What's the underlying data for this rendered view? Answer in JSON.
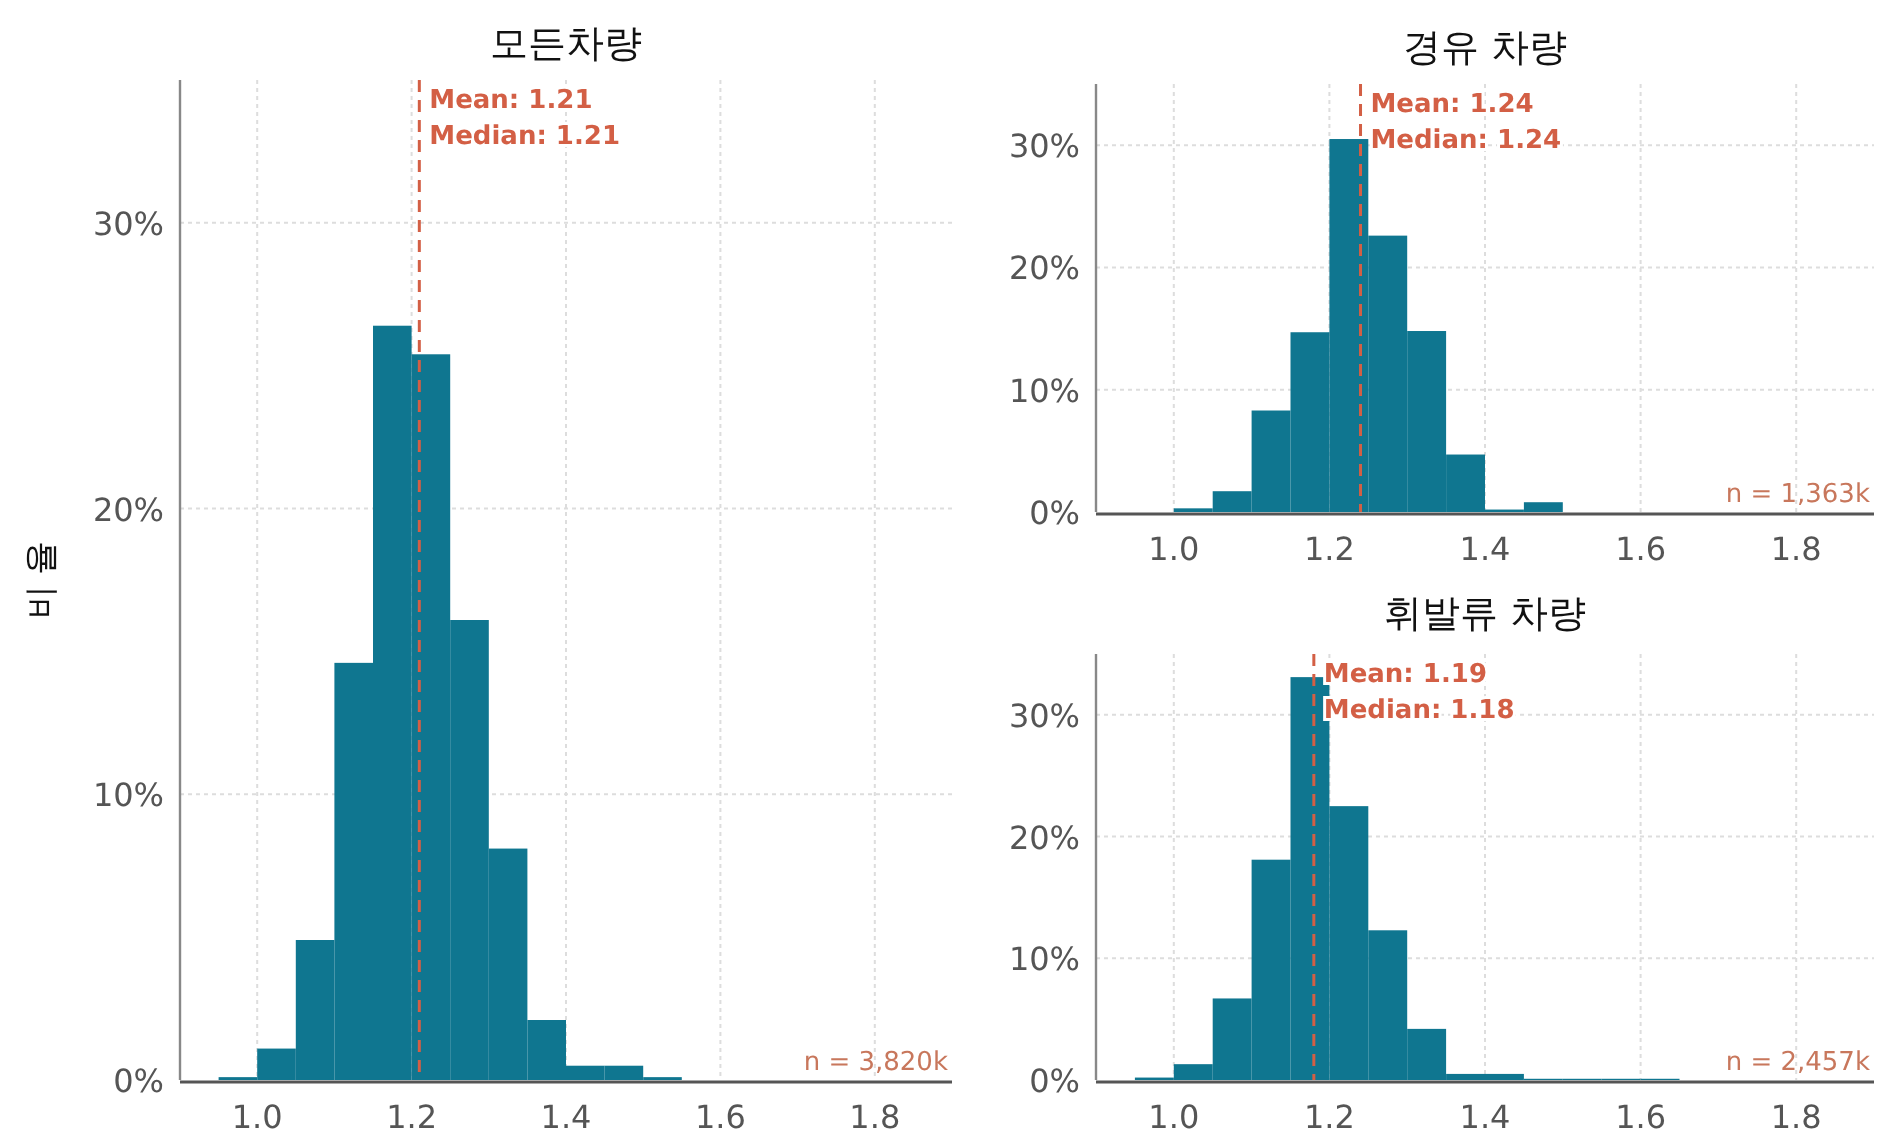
{
  "chart_data": [
    {
      "type": "histogram",
      "title": "모든차량",
      "ylabel": "비 율",
      "color": "#0f7690",
      "bins": [
        0.95,
        1.0,
        1.05,
        1.1,
        1.15,
        1.2,
        1.25,
        1.3,
        1.35,
        1.4,
        1.45,
        1.5,
        1.55,
        1.6,
        1.65,
        1.7,
        1.75,
        1.8,
        1.85,
        1.9
      ],
      "values": [
        0.1,
        1.1,
        4.9,
        14.6,
        26.4,
        25.4,
        16.1,
        8.1,
        2.1,
        0.5,
        0.5,
        0.1,
        0,
        0,
        0,
        0,
        0,
        0,
        0
      ],
      "xlim": [
        0.9,
        1.9
      ],
      "ylim": [
        0,
        35
      ],
      "xticks": [
        {
          "value": 1,
          "label": "1.0"
        },
        {
          "value": 1.2,
          "label": "1.2"
        },
        {
          "value": 1.4,
          "label": "1.4"
        },
        {
          "value": 1.6,
          "label": "1.6"
        },
        {
          "value": 1.8,
          "label": "1.8"
        }
      ],
      "yticks": [
        {
          "value": 0,
          "label": "0%"
        },
        {
          "value": 10,
          "label": "10%"
        },
        {
          "value": 20,
          "label": "20%"
        },
        {
          "value": 30,
          "label": "30%"
        }
      ],
      "grid": true,
      "ref_lines": [
        {
          "axis": "x",
          "value": 1.21,
          "label": "Mean: 1.21\nMedian: 1.21",
          "color": "#d35f45",
          "line_style": "dashed"
        }
      ],
      "annotations": [
        "n = 3,820k"
      ]
    },
    {
      "type": "histogram",
      "title": "경유 차량",
      "color": "#0f7690",
      "bins": [
        1.0,
        1.05,
        1.1,
        1.15,
        1.2,
        1.25,
        1.3,
        1.35,
        1.4,
        1.45,
        1.5,
        1.55,
        1.6,
        1.65,
        1.7,
        1.75,
        1.8,
        1.85,
        1.9
      ],
      "values": [
        0.3,
        1.7,
        8.3,
        14.7,
        30.5,
        22.6,
        14.8,
        4.7,
        0.2,
        0.8,
        0,
        0,
        0,
        0,
        0,
        0,
        0,
        0
      ],
      "xlim": [
        0.9,
        1.9
      ],
      "ylim": [
        0,
        35
      ],
      "xticks": [
        {
          "value": 1,
          "label": "1.0"
        },
        {
          "value": 1.2,
          "label": "1.2"
        },
        {
          "value": 1.4,
          "label": "1.4"
        },
        {
          "value": 1.6,
          "label": "1.6"
        },
        {
          "value": 1.8,
          "label": "1.8"
        }
      ],
      "yticks": [
        {
          "value": 0,
          "label": "0%"
        },
        {
          "value": 10,
          "label": "10%"
        },
        {
          "value": 20,
          "label": "20%"
        },
        {
          "value": 30,
          "label": "30%"
        }
      ],
      "grid": true,
      "ref_lines": [
        {
          "axis": "x",
          "value": 1.24,
          "label": "Mean: 1.24\nMedian: 1.24",
          "color": "#d35f45",
          "line_style": "dashed"
        }
      ],
      "annotations": [
        "n = 1,363k"
      ]
    },
    {
      "type": "histogram",
      "title": "휘발류 차량",
      "color": "#0f7690",
      "bins": [
        0.95,
        1.0,
        1.05,
        1.1,
        1.15,
        1.2,
        1.25,
        1.3,
        1.35,
        1.4,
        1.45,
        1.5,
        1.55,
        1.6,
        1.65,
        1.7,
        1.75,
        1.8,
        1.85,
        1.9
      ],
      "values": [
        0.2,
        1.3,
        6.7,
        18.1,
        33.1,
        22.5,
        12.3,
        4.2,
        0.5,
        0.5,
        0.1,
        0.1,
        0.1,
        0.1,
        0,
        0,
        0,
        0,
        0
      ],
      "xlim": [
        0.9,
        1.9
      ],
      "ylim": [
        0,
        35
      ],
      "xticks": [
        {
          "value": 1,
          "label": "1.0"
        },
        {
          "value": 1.2,
          "label": "1.2"
        },
        {
          "value": 1.4,
          "label": "1.4"
        },
        {
          "value": 1.6,
          "label": "1.6"
        },
        {
          "value": 1.8,
          "label": "1.8"
        }
      ],
      "yticks": [
        {
          "value": 0,
          "label": "0%"
        },
        {
          "value": 10,
          "label": "10%"
        },
        {
          "value": 20,
          "label": "20%"
        },
        {
          "value": 30,
          "label": "30%"
        }
      ],
      "grid": true,
      "ref_lines": [
        {
          "axis": "x",
          "value": 1.18,
          "label": "Mean: 1.19\nMedian: 1.18",
          "color": "#d35f45",
          "line_style": "dashed"
        }
      ],
      "annotations": [
        "n = 2,457k"
      ]
    }
  ]
}
